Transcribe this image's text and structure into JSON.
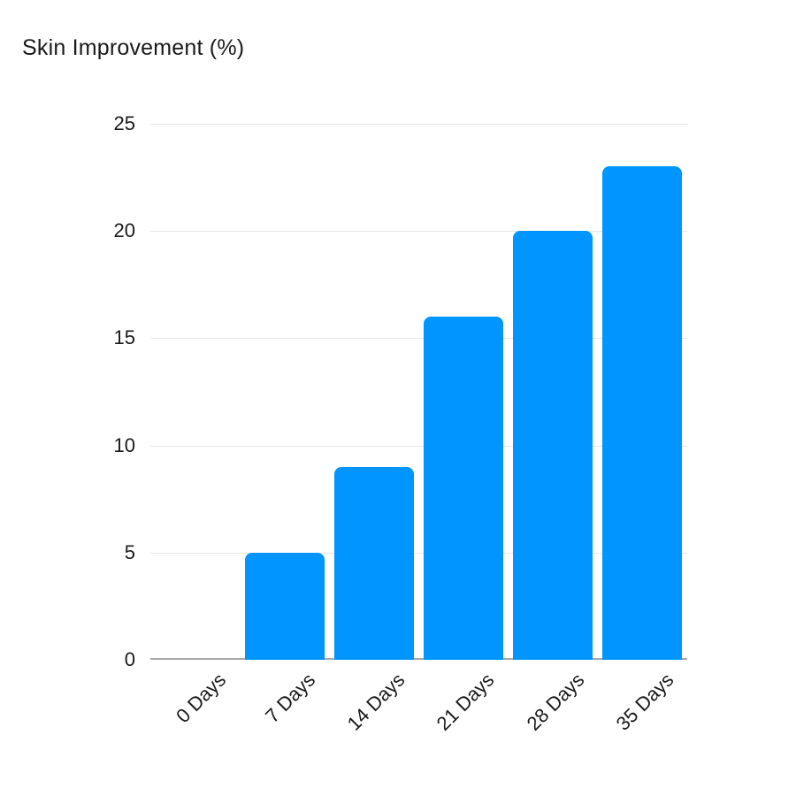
{
  "chart_data": {
    "type": "bar",
    "title": "Skin Improvement (%)",
    "categories": [
      "0 Days",
      "7 Days",
      "14 Days",
      "21 Days",
      "28 Days",
      "35 Days"
    ],
    "values": [
      0,
      5,
      9,
      16,
      20,
      23
    ],
    "xlabel": "",
    "ylabel": "",
    "ylim": [
      0,
      25
    ],
    "ytick_step": 5,
    "ytick_labels": [
      "0",
      "5",
      "10",
      "15",
      "20",
      "25"
    ],
    "grid": true,
    "legend": "none",
    "x_label_rotation_deg": -45,
    "colors": {
      "bar": "#0095ff",
      "gridline": "#e6e6e6",
      "axis_line": "#a8a8a8",
      "text": "#1a1a1a",
      "background": "#ffffff"
    }
  }
}
